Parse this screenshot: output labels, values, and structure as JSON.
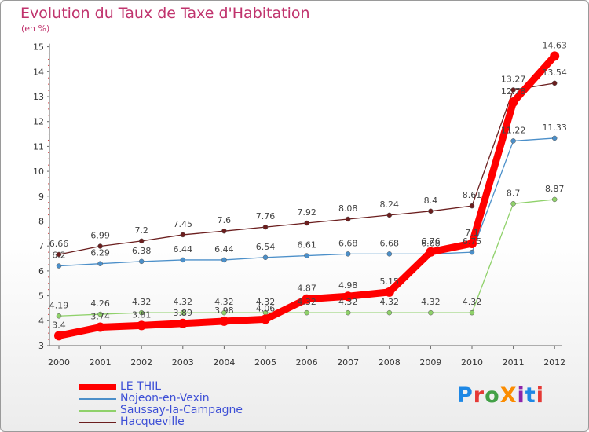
{
  "title": "Evolution du Taux de Taxe d'Habitation",
  "unit_label": "(en %)",
  "logo": {
    "text": "ProXiti",
    "letters": [
      "P",
      "r",
      "o",
      "X",
      "i",
      "t",
      "i"
    ],
    "colors": [
      "#1e88e5",
      "#e53935",
      "#43a047",
      "#fb8c00",
      "#8e24aa",
      "#1e88e5",
      "#e53935"
    ]
  },
  "chart_data": {
    "type": "line",
    "x": [
      "2000",
      "2001",
      "2002",
      "2003",
      "2004",
      "2005",
      "2006",
      "2007",
      "2008",
      "2009",
      "2010",
      "2011",
      "2012"
    ],
    "ylim": [
      3,
      15
    ],
    "yticks": [
      "3",
      "4",
      "5",
      "6",
      "7",
      "8",
      "9",
      "10",
      "11",
      "12",
      "13",
      "14",
      "15"
    ],
    "grid": false,
    "legend_position": "bottom-left",
    "series": [
      {
        "name": "LE THIL",
        "color": "#ff0000",
        "thick": true,
        "values": [
          3.4,
          3.74,
          3.81,
          3.89,
          3.98,
          4.06,
          4.87,
          4.98,
          5.15,
          6.76,
          7.1,
          12.78,
          14.63
        ],
        "labels": [
          "3.4",
          "3.74",
          "3.81",
          "3.89",
          "3.98",
          "4.06",
          "4.87",
          "4.98",
          "5.15",
          "6.76",
          "7.1",
          "12.78",
          "14.63"
        ]
      },
      {
        "name": "Nojeon-en-Vexin",
        "color": "#4b8fc9",
        "thick": false,
        "values": [
          6.2,
          6.29,
          6.38,
          6.44,
          6.44,
          6.54,
          6.61,
          6.68,
          6.68,
          6.68,
          6.75,
          11.22,
          11.33
        ],
        "labels": [
          "6.2",
          "6.29",
          "6.38",
          "6.44",
          "6.44",
          "6.54",
          "6.61",
          "6.68",
          "6.68",
          "6.68",
          "6.75",
          "11.22",
          "11.33"
        ]
      },
      {
        "name": "Saussay-la-Campagne",
        "color": "#8fd16a",
        "thick": false,
        "values": [
          4.19,
          4.26,
          4.32,
          4.32,
          4.32,
          4.32,
          4.32,
          4.32,
          4.32,
          4.32,
          4.32,
          8.7,
          8.87
        ],
        "labels": [
          "4.19",
          "4.26",
          "4.32",
          "4.32",
          "4.32",
          "4.32",
          "4.32",
          "4.32",
          "4.32",
          "4.32",
          "4.32",
          "8.7",
          "8.87"
        ]
      },
      {
        "name": "Hacqueville",
        "color": "#6b1e1e",
        "thick": false,
        "values": [
          6.66,
          6.99,
          7.2,
          7.45,
          7.6,
          7.76,
          7.92,
          8.08,
          8.24,
          8.4,
          8.61,
          13.27,
          13.54
        ],
        "labels": [
          "6.66",
          "6.99",
          "7.2",
          "7.45",
          "7.6",
          "7.76",
          "7.92",
          "8.08",
          "8.24",
          "8.4",
          "8.61",
          "13.27",
          "13.54"
        ]
      }
    ]
  }
}
